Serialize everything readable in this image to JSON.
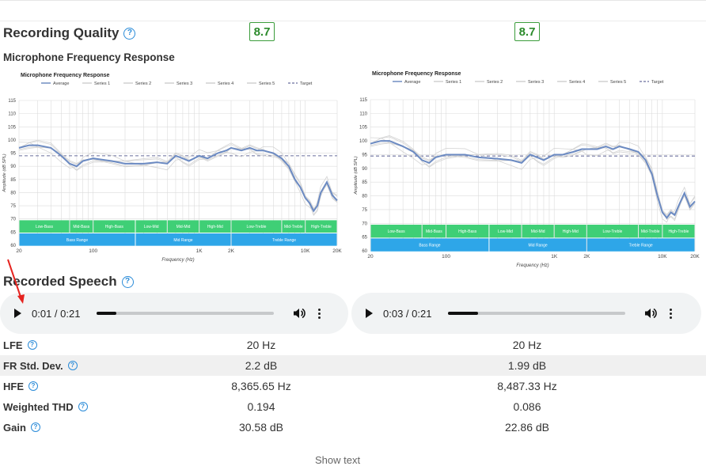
{
  "recording_quality": {
    "title": "Recording Quality",
    "help": "?",
    "score_left": "8.7",
    "score_right": "8.7"
  },
  "frequency_response": {
    "title": "Microphone Frequency Response"
  },
  "recorded_speech": {
    "title": "Recorded Speech",
    "help": "?"
  },
  "players": [
    {
      "time": "0:01 / 0:21",
      "progress": 0.11
    },
    {
      "time": "0:03 / 0:21",
      "progress": 0.17
    }
  ],
  "measurements": [
    {
      "label": "LFE",
      "left": "20 Hz",
      "right": "20 Hz"
    },
    {
      "label": "FR Std. Dev.",
      "left": "2.2 dB",
      "right": "1.99 dB"
    },
    {
      "label": "HFE",
      "left": "8,365.65 Hz",
      "right": "8,487.33 Hz"
    },
    {
      "label": "Weighted THD",
      "left": "0.194",
      "right": "0.086"
    },
    {
      "label": "Gain",
      "left": "30.58 dB",
      "right": "22.86 dB"
    }
  ],
  "show_text": "Show text",
  "chart_data": [
    {
      "type": "line",
      "title": "Microphone Frequency Response",
      "xlabel": "Frequency (Hz)",
      "ylabel": "Amplitude (dB SPL)",
      "x_scale": "log",
      "xlim": [
        20,
        20000
      ],
      "ylim": [
        60,
        115
      ],
      "x_ticks": [
        "20",
        "100",
        "1K",
        "2K",
        "10K",
        "20K"
      ],
      "y_ticks": [
        "60",
        "65",
        "70",
        "75",
        "80",
        "85",
        "90",
        "95",
        "100",
        "105",
        "110",
        "115"
      ],
      "legend": [
        "Average",
        "Series 1",
        "Series 2",
        "Series 3",
        "Series 4",
        "Series 5",
        "Target"
      ],
      "legend_position": "top",
      "bands_top": [
        "Low-Bass",
        "Mid-Bass",
        "High-Bass",
        "Low-Mid",
        "Mid-Mid",
        "High-Mid",
        "Low-Treble",
        "Mid-Treble",
        "High-Treble"
      ],
      "bands_bottom": [
        "Bass Range",
        "Mid Range",
        "Treble Range"
      ],
      "target": 94,
      "series": [
        {
          "name": "Average",
          "x": [
            20,
            25,
            30,
            40,
            50,
            60,
            70,
            80,
            100,
            150,
            200,
            300,
            400,
            500,
            600,
            700,
            800,
            1000,
            1200,
            1500,
            1800,
            2000,
            2500,
            3000,
            3500,
            4000,
            5000,
            6000,
            7000,
            8000,
            9000,
            10000,
            11000,
            12000,
            13000,
            14000,
            16000,
            18000,
            20000
          ],
          "y": [
            97,
            98,
            98,
            97,
            94,
            91,
            90,
            92,
            93,
            92,
            91,
            91,
            91.5,
            91,
            94,
            93,
            92,
            94,
            93,
            95,
            96,
            97,
            96,
            97,
            96,
            96,
            95,
            93,
            90,
            85,
            82,
            78,
            76,
            73,
            75,
            80,
            84,
            79,
            77
          ]
        }
      ]
    },
    {
      "type": "line",
      "title": "Microphone Frequency Response",
      "xlabel": "Frequency (Hz)",
      "ylabel": "Amplitude (dB SPL)",
      "x_scale": "log",
      "xlim": [
        20,
        20000
      ],
      "ylim": [
        60,
        115
      ],
      "x_ticks": [
        "20",
        "100",
        "1K",
        "2K",
        "10K",
        "20K"
      ],
      "y_ticks": [
        "60",
        "65",
        "70",
        "75",
        "80",
        "85",
        "90",
        "95",
        "100",
        "105",
        "110",
        "115"
      ],
      "legend": [
        "Average",
        "Series 1",
        "Series 2",
        "Series 3",
        "Series 4",
        "Series 5",
        "Target"
      ],
      "legend_position": "top",
      "bands_top": [
        "Low-Bass",
        "Mid-Bass",
        "High-Bass",
        "Low-Mid",
        "Mid-Mid",
        "High-Mid",
        "Low-Treble",
        "Mid-Treble",
        "High-Treble"
      ],
      "bands_bottom": [
        "Bass Range",
        "Mid Range",
        "Treble Range"
      ],
      "target": 94.5,
      "series": [
        {
          "name": "Average",
          "x": [
            20,
            25,
            30,
            40,
            50,
            60,
            70,
            80,
            100,
            150,
            200,
            300,
            400,
            500,
            600,
            700,
            800,
            1000,
            1200,
            1500,
            1800,
            2000,
            2500,
            3000,
            3500,
            4000,
            5000,
            6000,
            7000,
            8000,
            9000,
            10000,
            11000,
            12000,
            13000,
            14000,
            16000,
            18000,
            20000
          ],
          "y": [
            99,
            100,
            100,
            98,
            96,
            93,
            92,
            94,
            95,
            95,
            94,
            93.5,
            93,
            92,
            95,
            94,
            93,
            95,
            95,
            96,
            97,
            97,
            97,
            98,
            97,
            98,
            97,
            96,
            93,
            88,
            80,
            74,
            72,
            74,
            73,
            76,
            81,
            76,
            78
          ]
        }
      ]
    }
  ]
}
